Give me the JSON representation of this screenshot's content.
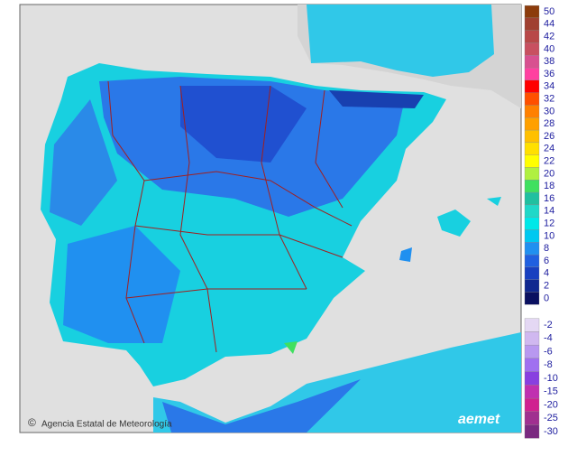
{
  "legend": {
    "items": [
      {
        "label": "50",
        "color": "#8c3c0c"
      },
      {
        "label": "44",
        "color": "#a04030"
      },
      {
        "label": "42",
        "color": "#b84848"
      },
      {
        "label": "40",
        "color": "#c85060"
      },
      {
        "label": "38",
        "color": "#d85090"
      },
      {
        "label": "36",
        "color": "#ff40a0"
      },
      {
        "label": "34",
        "color": "#ff0000"
      },
      {
        "label": "32",
        "color": "#ff5000"
      },
      {
        "label": "30",
        "color": "#ff8000"
      },
      {
        "label": "28",
        "color": "#ffa000"
      },
      {
        "label": "26",
        "color": "#ffc000"
      },
      {
        "label": "24",
        "color": "#ffe000"
      },
      {
        "label": "22",
        "color": "#ffff00"
      },
      {
        "label": "20",
        "color": "#b0f040"
      },
      {
        "label": "18",
        "color": "#40e060"
      },
      {
        "label": "16",
        "color": "#20c0a0"
      },
      {
        "label": "14",
        "color": "#20d8c8"
      },
      {
        "label": "12",
        "color": "#00e8e8"
      },
      {
        "label": "10",
        "color": "#00c8f0"
      },
      {
        "label": "8",
        "color": "#2090f0"
      },
      {
        "label": "6",
        "color": "#2060e0"
      },
      {
        "label": "4",
        "color": "#1840c0"
      },
      {
        "label": "2",
        "color": "#102890"
      },
      {
        "label": "0",
        "color": "#0a1060"
      }
    ],
    "negative_items": [
      {
        "label": "-2",
        "color": "#e4d8f4"
      },
      {
        "label": "-4",
        "color": "#d0b8f0"
      },
      {
        "label": "-6",
        "color": "#b898f0"
      },
      {
        "label": "-8",
        "color": "#a070f0"
      },
      {
        "label": "-10",
        "color": "#8840e0"
      },
      {
        "label": "-15",
        "color": "#c030b0"
      },
      {
        "label": "-20",
        "color": "#d02090"
      },
      {
        "label": "-25",
        "color": "#a03090"
      },
      {
        "label": "-30",
        "color": "#7a2a80"
      }
    ]
  },
  "credit": {
    "agency": "Agencia Estatal de Meteorología",
    "logo": "aemet",
    "copyright": "©"
  }
}
